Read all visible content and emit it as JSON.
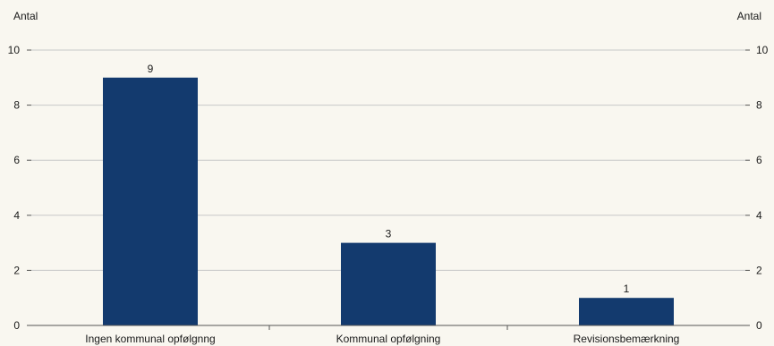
{
  "chart_data": {
    "type": "bar",
    "categories": [
      "Ingen kommunal opfølgnng",
      "Kommunal opfølgning",
      "Revisionsbemærkning"
    ],
    "values": [
      9,
      3,
      1
    ],
    "data_labels": [
      "9",
      "3",
      "1"
    ],
    "ylabel_left": "Antal",
    "ylabel_right": "Antal",
    "ylim": [
      0,
      10
    ],
    "yticks": [
      0,
      2,
      4,
      6,
      8,
      10
    ],
    "grid": true,
    "bar_color": "#133a6e",
    "grid_color": "#c8c8c8",
    "background": "#f9f7f0"
  }
}
